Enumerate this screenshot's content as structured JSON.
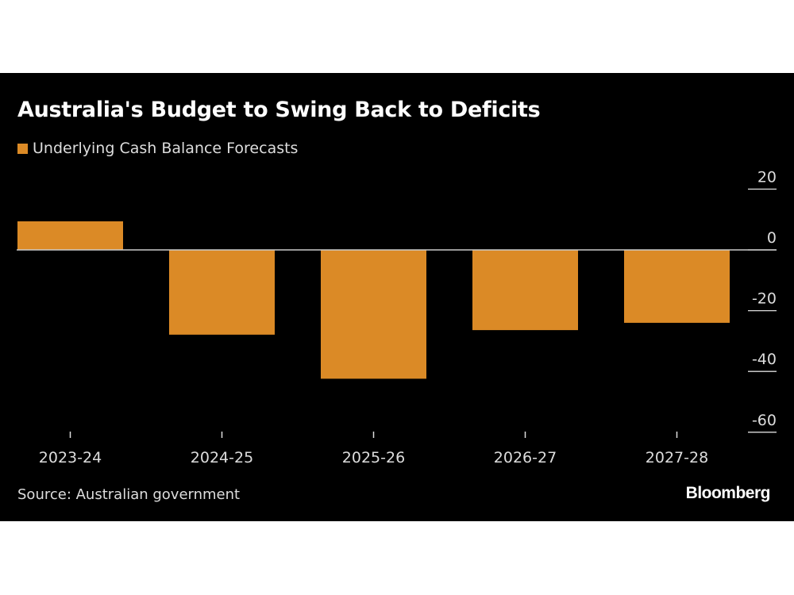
{
  "title": "Australia's Budget to Swing Back to Deficits",
  "source": "Source: Australian government",
  "brand": "Bloomberg",
  "colors": {
    "bar": "#db8a26",
    "background": "#000000",
    "text": "#dddddd"
  },
  "chart_data": {
    "type": "bar",
    "categories": [
      "2023-24",
      "2024-25",
      "2025-26",
      "2026-27",
      "2027-28"
    ],
    "series": [
      {
        "name": "Underlying Cash Balance Forecasts",
        "values": [
          9.4,
          -27.9,
          -42.4,
          -26.4,
          -24.0
        ]
      }
    ],
    "ylim": [
      -60,
      20
    ],
    "yticks": [
      "20",
      "0",
      "-20",
      "-40",
      "-60"
    ],
    "yaxis_position": "right",
    "legend": "top-left",
    "grid": false
  }
}
